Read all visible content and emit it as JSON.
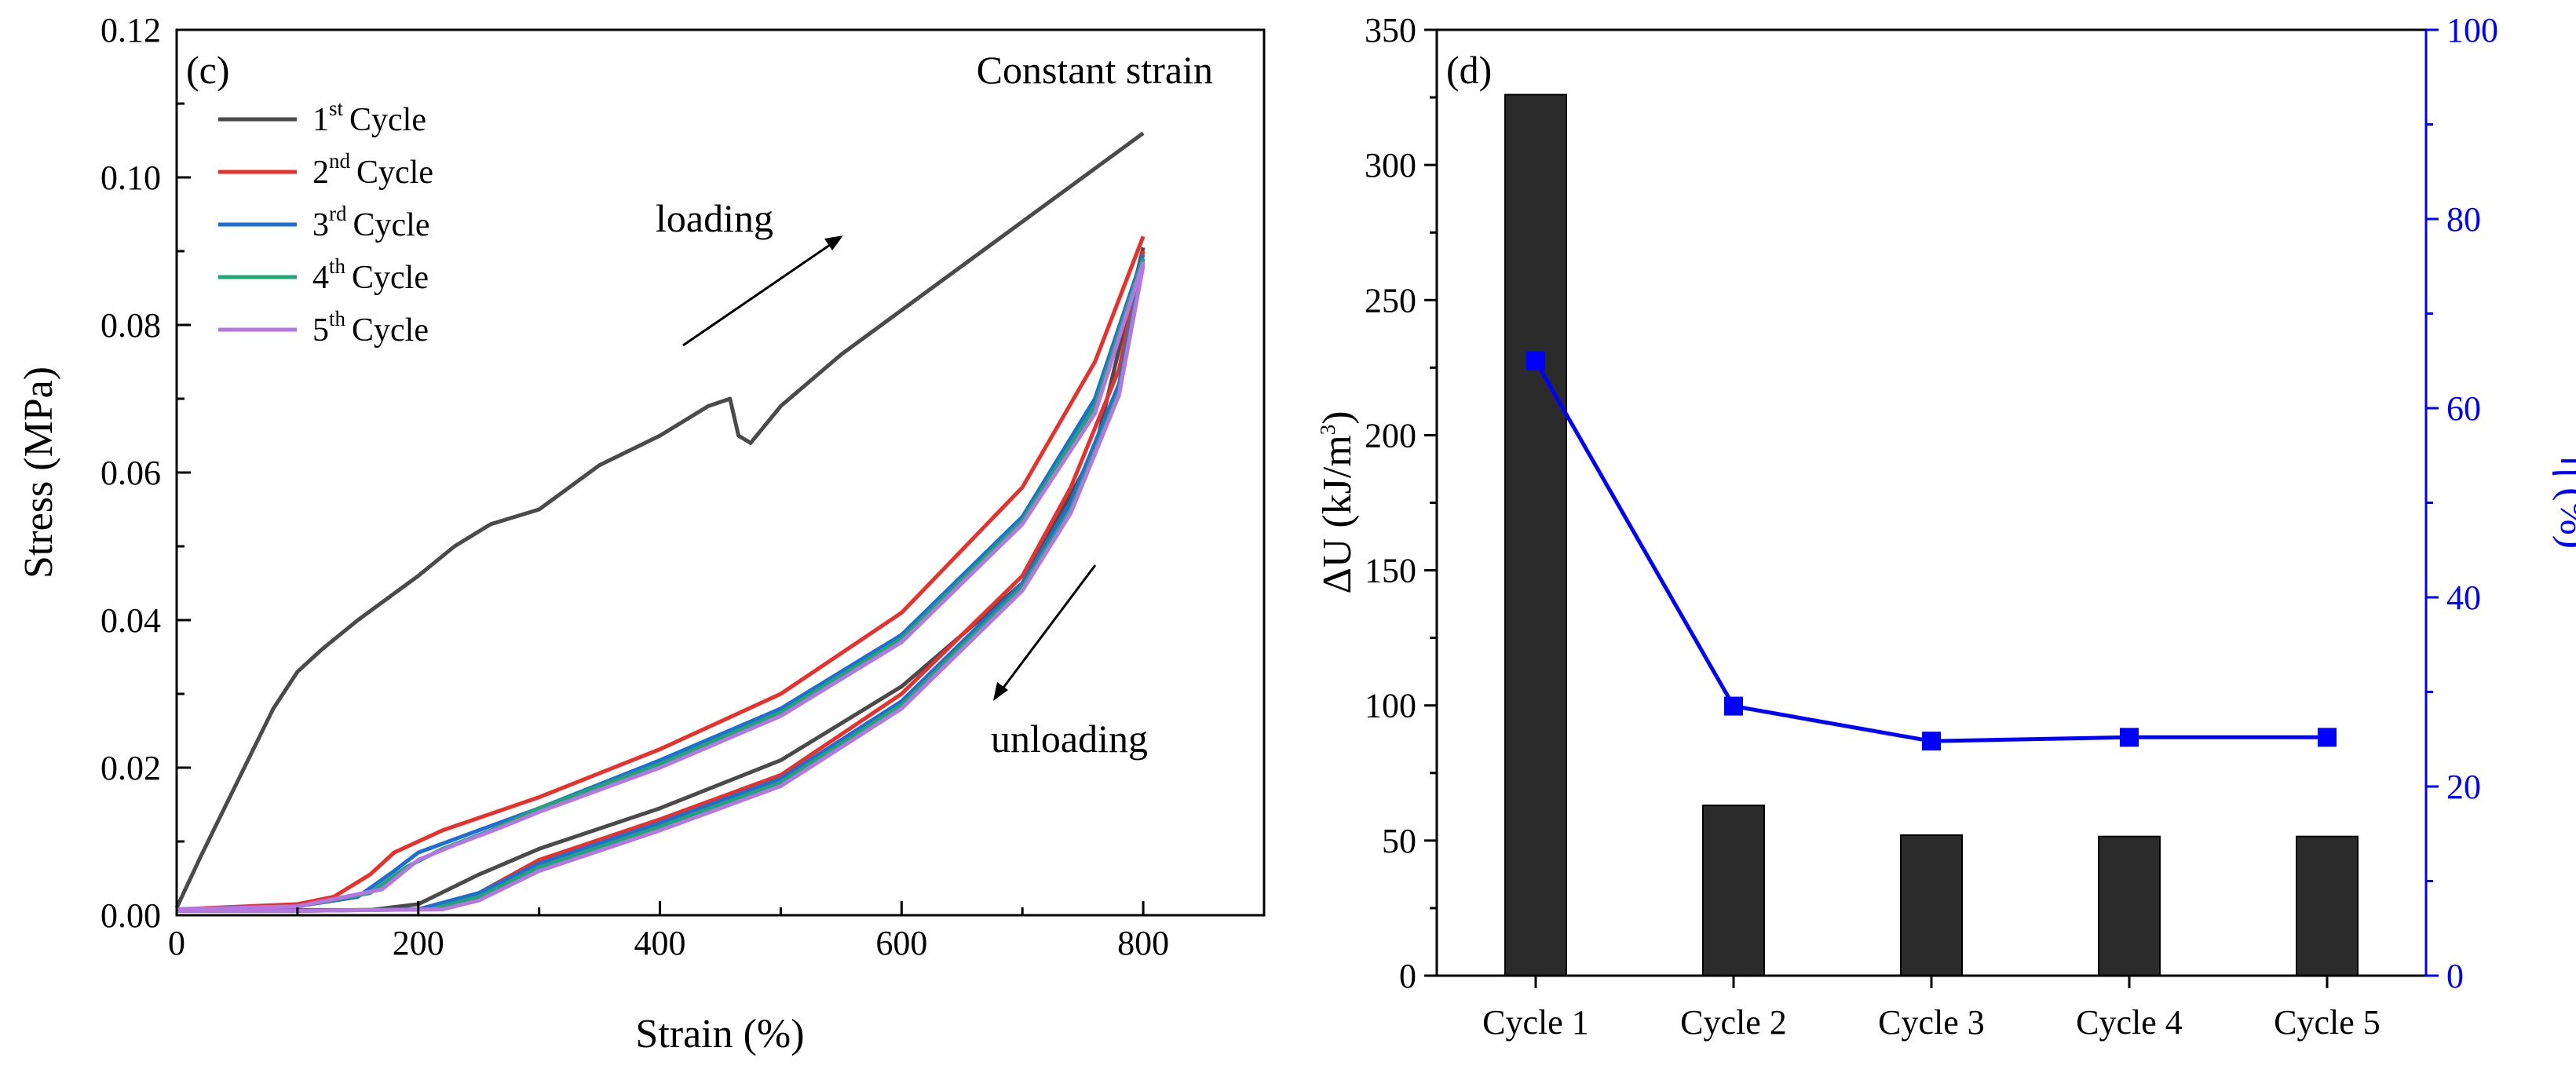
{
  "chart_data": [
    {
      "panel": "(c)",
      "type": "line",
      "title": "Constant strain",
      "xlabel": "Strain (%)",
      "ylabel": "Stress (MPa)",
      "xlim": [
        0,
        900
      ],
      "ylim": [
        0,
        0.12
      ],
      "xticks": [
        "0",
        "200",
        "400",
        "600",
        "800"
      ],
      "yticks": [
        "0.00",
        "0.02",
        "0.04",
        "0.06",
        "0.08",
        "0.10",
        "0.12"
      ],
      "legend": {
        "placement": "top-left",
        "cycle_word": "Cycle"
      },
      "annotations": {
        "loading": "loading",
        "unloading": "unloading"
      },
      "series": [
        {
          "name": "1st Cycle",
          "num": "1",
          "sup": "st",
          "color": "#4a4a4a",
          "loading": [
            [
              0,
              0.001
            ],
            [
              20,
              0.008
            ],
            [
              50,
              0.018
            ],
            [
              80,
              0.028
            ],
            [
              100,
              0.033
            ],
            [
              120,
              0.036
            ],
            [
              150,
              0.04
            ],
            [
              200,
              0.046
            ],
            [
              230,
              0.05
            ],
            [
              260,
              0.053
            ],
            [
              300,
              0.055
            ],
            [
              350,
              0.061
            ],
            [
              400,
              0.065
            ],
            [
              440,
              0.069
            ],
            [
              458,
              0.07
            ],
            [
              465,
              0.065
            ],
            [
              475,
              0.064
            ],
            [
              500,
              0.069
            ],
            [
              550,
              0.076
            ],
            [
              600,
              0.082
            ],
            [
              700,
              0.094
            ],
            [
              800,
              0.106
            ]
          ],
          "unloading": [
            [
              800,
              0.0905
            ],
            [
              760,
              0.063
            ],
            [
              700,
              0.045
            ],
            [
              600,
              0.031
            ],
            [
              500,
              0.021
            ],
            [
              400,
              0.0145
            ],
            [
              300,
              0.009
            ],
            [
              250,
              0.0055
            ],
            [
              200,
              0.0015
            ],
            [
              160,
              0.0007
            ],
            [
              100,
              0.0007
            ],
            [
              0,
              0.0007
            ]
          ]
        },
        {
          "name": "2nd Cycle",
          "num": "2",
          "sup": "nd",
          "color": "#e8312c",
          "loading": [
            [
              0,
              0.0008
            ],
            [
              100,
              0.0015
            ],
            [
              130,
              0.0025
            ],
            [
              160,
              0.0055
            ],
            [
              180,
              0.0085
            ],
            [
              220,
              0.0115
            ],
            [
              300,
              0.016
            ],
            [
              400,
              0.0225
            ],
            [
              500,
              0.03
            ],
            [
              600,
              0.041
            ],
            [
              700,
              0.058
            ],
            [
              760,
              0.075
            ],
            [
              800,
              0.092
            ]
          ],
          "unloading": [
            [
              800,
              0.09
            ],
            [
              780,
              0.074
            ],
            [
              740,
              0.058
            ],
            [
              700,
              0.046
            ],
            [
              600,
              0.03
            ],
            [
              500,
              0.019
            ],
            [
              400,
              0.013
            ],
            [
              300,
              0.0075
            ],
            [
              250,
              0.003
            ],
            [
              200,
              0.0008
            ],
            [
              100,
              0.0006
            ],
            [
              0,
              0.0006
            ]
          ]
        },
        {
          "name": "3rd Cycle",
          "num": "3",
          "sup": "rd",
          "color": "#1e6fd4",
          "loading": [
            [
              0,
              0.0008
            ],
            [
              100,
              0.0012
            ],
            [
              150,
              0.0025
            ],
            [
              180,
              0.006
            ],
            [
              200,
              0.0085
            ],
            [
              250,
              0.0115
            ],
            [
              300,
              0.0145
            ],
            [
              400,
              0.021
            ],
            [
              500,
              0.028
            ],
            [
              600,
              0.038
            ],
            [
              700,
              0.054
            ],
            [
              760,
              0.07
            ],
            [
              800,
              0.0895
            ]
          ],
          "unloading": [
            [
              800,
              0.089
            ],
            [
              780,
              0.072
            ],
            [
              740,
              0.056
            ],
            [
              700,
              0.045
            ],
            [
              600,
              0.029
            ],
            [
              500,
              0.0185
            ],
            [
              400,
              0.0125
            ],
            [
              300,
              0.007
            ],
            [
              250,
              0.003
            ],
            [
              200,
              0.0008
            ],
            [
              100,
              0.0006
            ],
            [
              0,
              0.0006
            ]
          ]
        },
        {
          "name": "4th Cycle",
          "num": "4",
          "sup": "th",
          "color": "#20a575",
          "loading": [
            [
              0,
              0.0008
            ],
            [
              100,
              0.0012
            ],
            [
              160,
              0.003
            ],
            [
              190,
              0.0065
            ],
            [
              220,
              0.009
            ],
            [
              260,
              0.0115
            ],
            [
              300,
              0.0145
            ],
            [
              400,
              0.0205
            ],
            [
              500,
              0.0275
            ],
            [
              600,
              0.0375
            ],
            [
              700,
              0.0535
            ],
            [
              760,
              0.069
            ],
            [
              800,
              0.089
            ]
          ],
          "unloading": [
            [
              800,
              0.0885
            ],
            [
              780,
              0.071
            ],
            [
              740,
              0.055
            ],
            [
              700,
              0.0445
            ],
            [
              600,
              0.0285
            ],
            [
              500,
              0.018
            ],
            [
              400,
              0.012
            ],
            [
              300,
              0.0065
            ],
            [
              250,
              0.0025
            ],
            [
              210,
              0.0008
            ],
            [
              100,
              0.0006
            ],
            [
              0,
              0.0006
            ]
          ]
        },
        {
          "name": "5th Cycle",
          "num": "5",
          "sup": "th",
          "color": "#b676e2",
          "loading": [
            [
              0,
              0.0008
            ],
            [
              100,
              0.0012
            ],
            [
              170,
              0.0035
            ],
            [
              200,
              0.0075
            ],
            [
              230,
              0.0095
            ],
            [
              270,
              0.012
            ],
            [
              300,
              0.014
            ],
            [
              400,
              0.02
            ],
            [
              500,
              0.027
            ],
            [
              600,
              0.037
            ],
            [
              700,
              0.053
            ],
            [
              760,
              0.068
            ],
            [
              800,
              0.0885
            ]
          ],
          "unloading": [
            [
              800,
              0.088
            ],
            [
              780,
              0.0705
            ],
            [
              740,
              0.0545
            ],
            [
              700,
              0.044
            ],
            [
              600,
              0.028
            ],
            [
              500,
              0.0175
            ],
            [
              400,
              0.0115
            ],
            [
              300,
              0.006
            ],
            [
              250,
              0.002
            ],
            [
              220,
              0.0008
            ],
            [
              100,
              0.0006
            ],
            [
              0,
              0.0006
            ]
          ]
        }
      ]
    },
    {
      "panel": "(d)",
      "type": "bar",
      "categories": [
        "Cycle 1",
        "Cycle 2",
        "Cycle 3",
        "Cycle 4",
        "Cycle 5"
      ],
      "ylabel_symbol": "ΔU",
      "ylabel_unit": "(kJ/m",
      "ylabel_exp": "3",
      "ylabel_close": ")",
      "ylim": [
        0,
        350
      ],
      "yticks": [
        "0",
        "50",
        "100",
        "150",
        "200",
        "250",
        "300",
        "350"
      ],
      "bar_color": "#2b2b2b",
      "series": [
        {
          "name": "ΔU",
          "axis": "left",
          "values": [
            326,
            63,
            52,
            51.5,
            51.5
          ]
        },
        {
          "name": "η",
          "axis": "right",
          "type": "line",
          "color": "#0000ff",
          "values": [
            65,
            28.5,
            24.8,
            25.2,
            25.2
          ]
        }
      ],
      "y2label": "η (%)",
      "y2lim": [
        0,
        100
      ],
      "y2ticks": [
        "0",
        "20",
        "40",
        "60",
        "80",
        "100"
      ]
    }
  ]
}
